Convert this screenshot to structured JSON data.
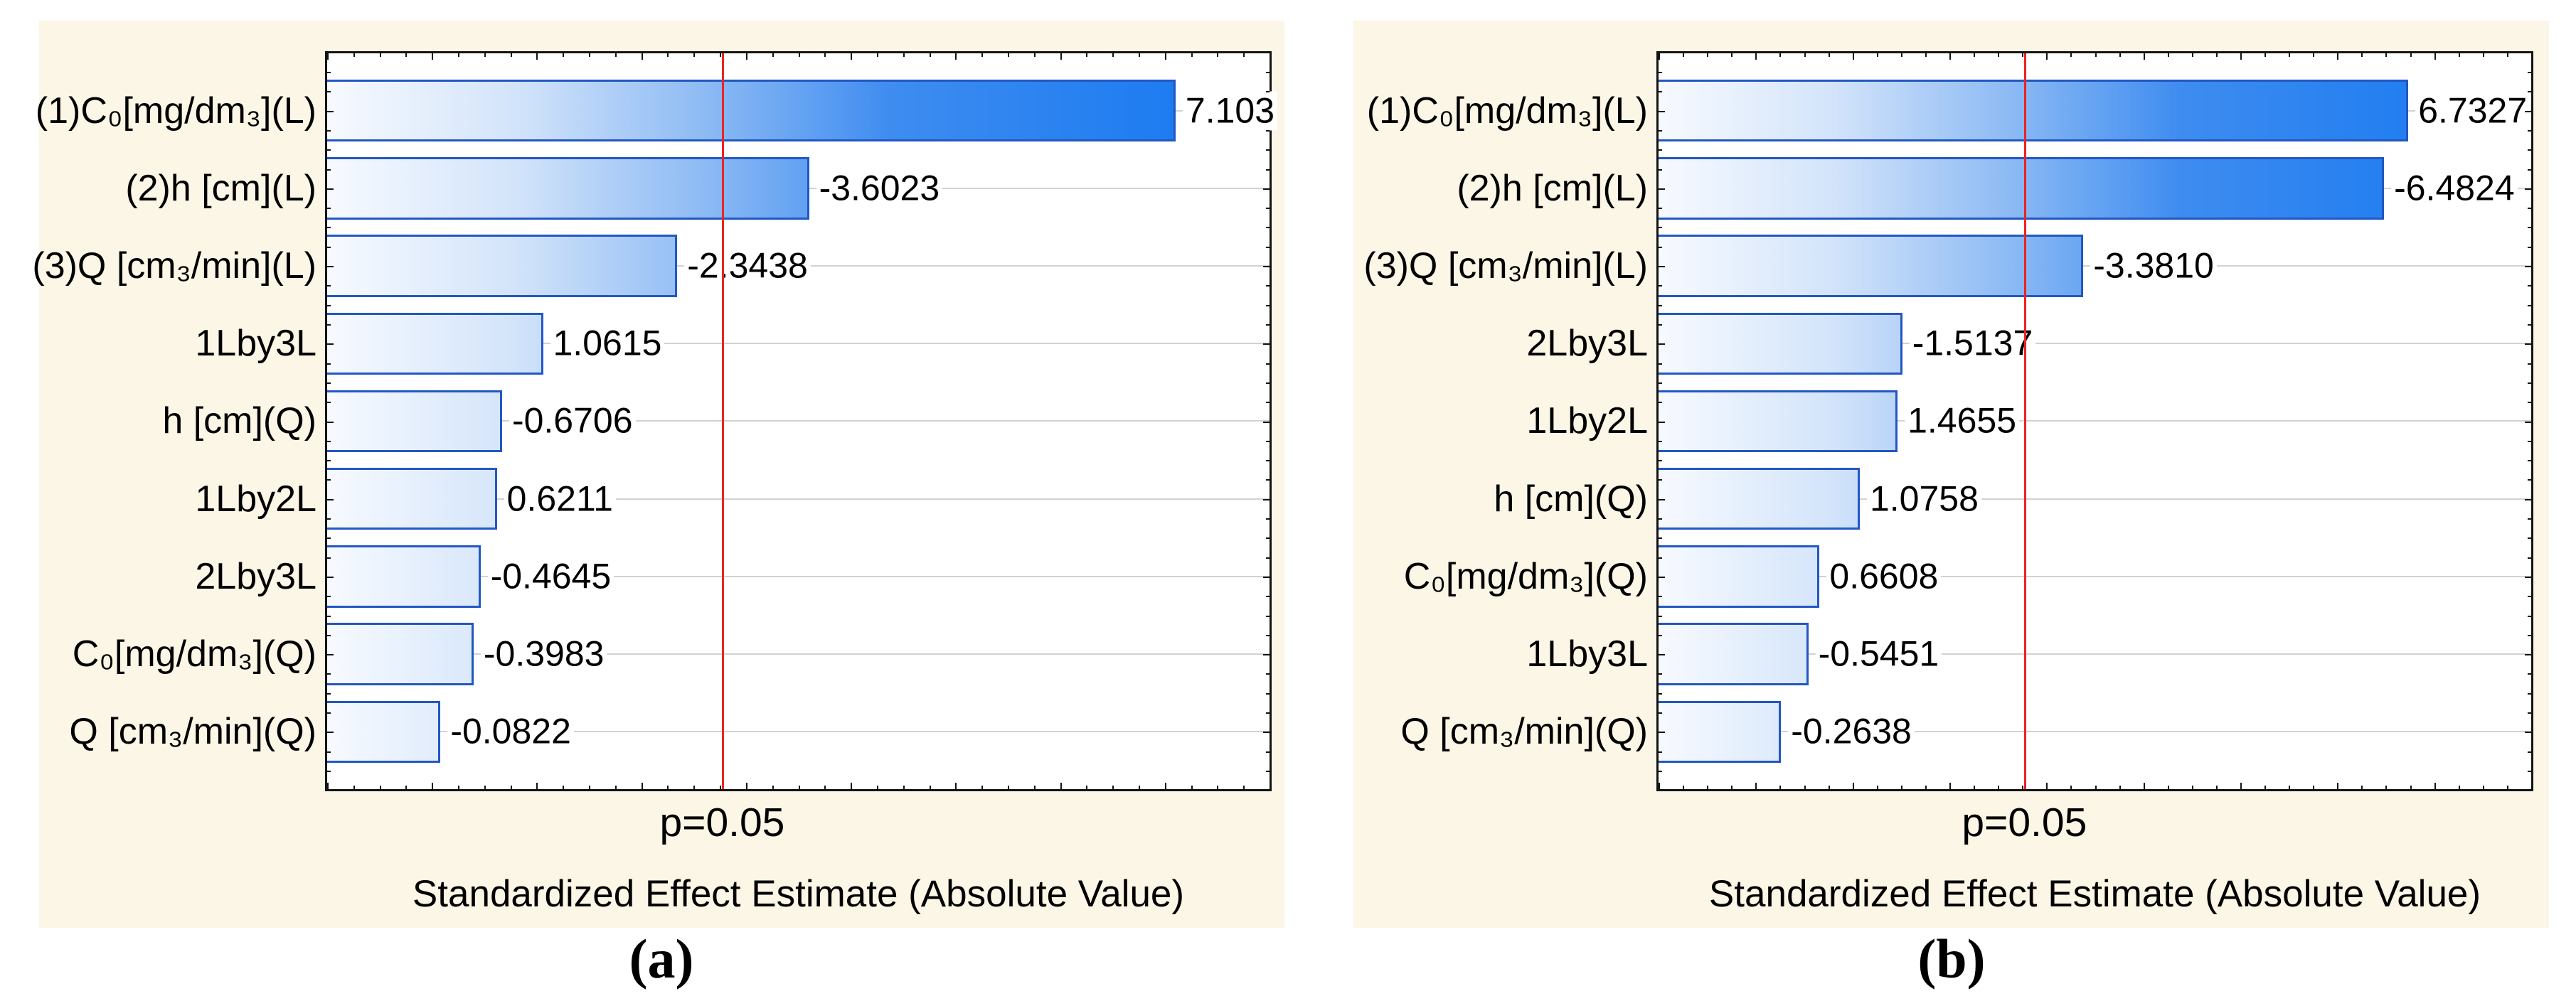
{
  "colors": {
    "panel_background": "#fbf6e5",
    "plot_border": "#141414",
    "bar_border": "#2257c4",
    "bar_gradient": [
      "#f7faff",
      "#d3e4fa",
      "#8ebbf4",
      "#3e8cf0",
      "#1377f1"
    ],
    "grid_line": "#d2d2d2",
    "reference_line": "#ee2321",
    "text_color": "#000000"
  },
  "chart_data": [
    {
      "type": "bar",
      "orientation": "horizontal",
      "caption": "(a)",
      "xlabel": "Standardized Effect Estimate (Absolute Value)",
      "xlim": [
        -1,
        8
      ],
      "grid": "horizontal category gridlines",
      "legend": "none",
      "bar_metric": "absolute value of standardized effect",
      "categories": [
        "(1)C₀[mg/dm₃](L)",
        "(2)h [cm](L)",
        "(3)Q [cm₃/min](L)",
        "1Lby3L",
        "h [cm](Q)",
        "1Lby2L",
        "2Lby3L",
        "C₀[mg/dm₃](Q)",
        "Q [cm₃/min](Q)"
      ],
      "values": [
        7.103,
        -3.6023,
        -2.3438,
        1.0615,
        -0.6706,
        0.6211,
        -0.4645,
        -0.3983,
        -0.0822
      ],
      "value_labels": [
        "7.103",
        "-3.6023",
        "-2.3438",
        "1.0615",
        "-0.6706",
        "0.6211",
        "-0.4645",
        "-0.3983",
        "-0.0822"
      ],
      "reference_line": {
        "label": "p=0.05",
        "x": 2.776
      }
    },
    {
      "type": "bar",
      "orientation": "horizontal",
      "caption": "(b)",
      "xlabel": "Standardized Effect Estimate (Absolute Value)",
      "xlim": [
        -1,
        8
      ],
      "grid": "horizontal category gridlines",
      "legend": "none",
      "bar_metric": "absolute value of standardized effect",
      "categories": [
        "(1)C₀[mg/dm₃](L)",
        "(2)h [cm](L)",
        "(3)Q [cm₃/min](L)",
        "2Lby3L",
        "1Lby2L",
        "h [cm](Q)",
        "C₀[mg/dm₃](Q)",
        "1Lby3L",
        "Q [cm₃/min](Q)"
      ],
      "values": [
        6.7327,
        -6.4824,
        -3.381,
        -1.5137,
        1.4655,
        1.0758,
        0.6608,
        -0.5451,
        -0.2638
      ],
      "value_labels": [
        "6.7327",
        "-6.4824",
        "-3.3810",
        "-1.5137",
        "1.4655",
        "1.0758",
        "0.6608",
        "-0.5451",
        "-0.2638"
      ],
      "reference_line": {
        "label": "p=0.05",
        "x": 2.776
      }
    }
  ]
}
